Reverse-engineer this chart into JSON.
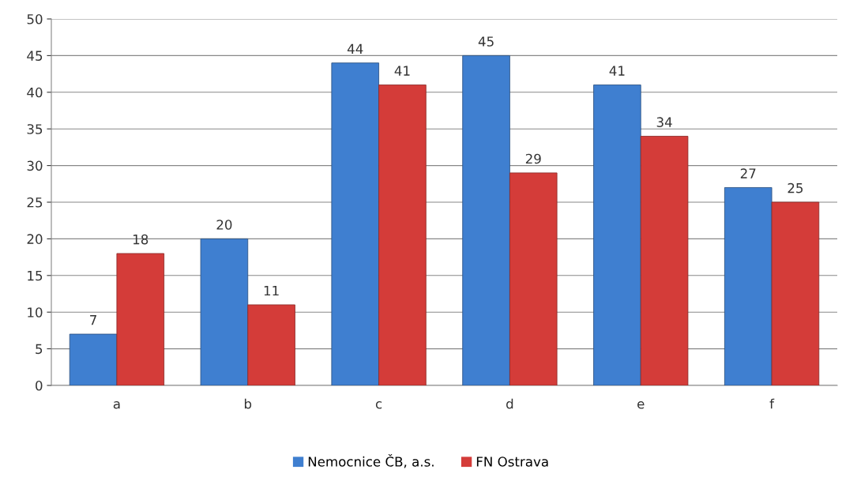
{
  "chart_data": {
    "type": "bar",
    "categories": [
      "a",
      "b",
      "c",
      "d",
      "e",
      "f"
    ],
    "series": [
      {
        "name": "Nemocnice ČB, a.s.",
        "color": "#3f7fd0",
        "values": [
          7,
          20,
          44,
          45,
          41,
          27
        ]
      },
      {
        "name": "FN Ostrava",
        "color": "#d43c39",
        "values": [
          18,
          11,
          41,
          29,
          34,
          25
        ]
      }
    ],
    "ylim": [
      0,
      50
    ],
    "yticks": [
      0,
      5,
      10,
      15,
      20,
      25,
      30,
      35,
      40,
      45,
      50
    ],
    "grid": "y",
    "legend": "bottom",
    "data_labels": true
  }
}
